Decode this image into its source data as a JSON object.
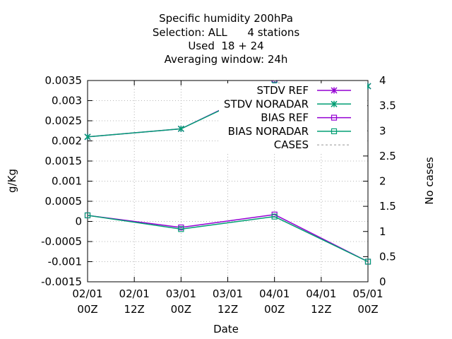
{
  "chart_data": {
    "type": "line",
    "title": [
      "Specific humidity 200hPa",
      "Selection: ALL      4 stations",
      "Used  18 + 24",
      "Averaging window: 24h"
    ],
    "xlabel": "Date",
    "ylabel": "g/Kg",
    "y2label": "No cases",
    "x_ticks": [
      "02/01\n00Z",
      "02/01\n12Z",
      "03/01\n00Z",
      "03/01\n12Z",
      "04/01\n00Z",
      "04/01\n12Z",
      "05/01\n00Z"
    ],
    "x_tick_positions": [
      0,
      12,
      24,
      36,
      48,
      60,
      72
    ],
    "xlim": [
      0,
      72
    ],
    "ylim": [
      -0.0015,
      0.0035
    ],
    "y_ticks": [
      "-0.0015",
      "-0.001",
      "-0.0005",
      "0",
      "0.0005",
      "0.001",
      "0.0015",
      "0.002",
      "0.0025",
      "0.003",
      "0.0035"
    ],
    "y_tick_values": [
      -0.0015,
      -0.001,
      -0.0005,
      0,
      0.0005,
      0.001,
      0.0015,
      0.002,
      0.0025,
      0.003,
      0.0035
    ],
    "y2lim": [
      0,
      4
    ],
    "y2_ticks": [
      "0",
      "0.5",
      "1",
      "1.5",
      "2",
      "2.5",
      "3",
      "3.5",
      "4"
    ],
    "y2_tick_values": [
      0,
      0.5,
      1,
      1.5,
      2,
      2.5,
      3,
      3.5,
      4
    ],
    "grid": true,
    "legend_position": "top-right",
    "series": [
      {
        "name": "STDV REF",
        "axis": "y1",
        "marker": "star",
        "color": "#9400d3",
        "x": [
          0,
          24,
          48,
          72
        ],
        "values": [
          0.0021,
          0.0023,
          0.00342,
          0.00336
        ]
      },
      {
        "name": "STDV NORADAR",
        "axis": "y1",
        "marker": "star",
        "color": "#009e73",
        "x": [
          0,
          24,
          48,
          72
        ],
        "values": [
          0.0021,
          0.0023,
          0.0034,
          0.00336
        ]
      },
      {
        "name": "BIAS REF",
        "axis": "y1",
        "marker": "square",
        "color": "#9400d3",
        "x": [
          0,
          24,
          48,
          72
        ],
        "values": [
          0.00015,
          -0.00015,
          0.00017,
          -0.001
        ]
      },
      {
        "name": "BIAS NORADAR",
        "axis": "y1",
        "marker": "square",
        "color": "#009e73",
        "x": [
          0,
          24,
          48,
          72
        ],
        "values": [
          0.00015,
          -0.00019,
          0.00012,
          -0.001
        ]
      },
      {
        "name": "CASES",
        "axis": "y2",
        "marker": "none",
        "dashed": true,
        "color": "#a0a0a0",
        "x": [
          48,
          72
        ],
        "values": [
          4,
          3
        ]
      }
    ]
  }
}
